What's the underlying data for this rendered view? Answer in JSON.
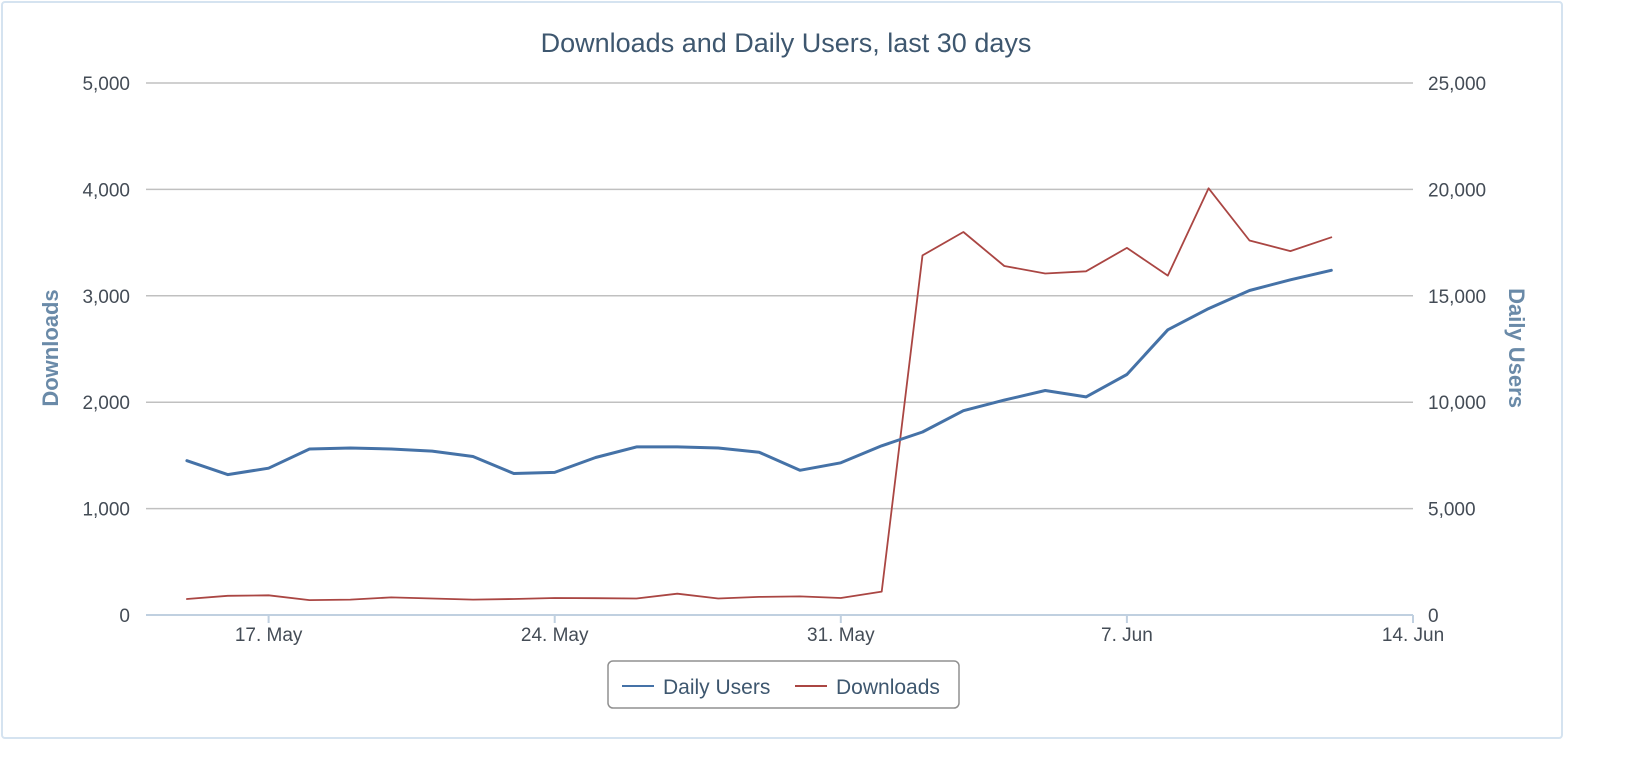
{
  "chart_data": {
    "type": "line",
    "title": "Downloads and Daily Users, last 30 days",
    "x_axis": {
      "type": "datetime",
      "ticks": [
        "17. May",
        "24. May",
        "31. May",
        "7. Jun",
        "14. Jun"
      ],
      "range": [
        "2015-05-14",
        "2015-06-14"
      ]
    },
    "y_axis_left": {
      "title": "Downloads",
      "range": [
        0,
        5000
      ],
      "ticks": [
        "0",
        "1,000",
        "2,000",
        "3,000",
        "4,000",
        "5,000"
      ]
    },
    "y_axis_right": {
      "title": "Daily Users",
      "range": [
        0,
        25000
      ],
      "ticks": [
        "0",
        "5,000",
        "10,000",
        "15,000",
        "20,000",
        "25,000"
      ]
    },
    "grid": true,
    "legend": {
      "position": "bottom-center",
      "items": [
        "Daily Users",
        "Downloads"
      ]
    },
    "x": [
      "2015-05-15",
      "2015-05-16",
      "2015-05-17",
      "2015-05-18",
      "2015-05-19",
      "2015-05-20",
      "2015-05-21",
      "2015-05-22",
      "2015-05-23",
      "2015-05-24",
      "2015-05-25",
      "2015-05-26",
      "2015-05-27",
      "2015-05-28",
      "2015-05-29",
      "2015-05-30",
      "2015-05-31",
      "2015-06-01",
      "2015-06-02",
      "2015-06-03",
      "2015-06-04",
      "2015-06-05",
      "2015-06-06",
      "2015-06-07",
      "2015-06-08",
      "2015-06-09",
      "2015-06-10",
      "2015-06-11",
      "2015-06-12"
    ],
    "series": [
      {
        "name": "Daily Users",
        "axis": "right",
        "color": "#4572a7",
        "values": [
          7250,
          6600,
          6900,
          7800,
          7850,
          7800,
          7700,
          7450,
          6650,
          6700,
          7400,
          7900,
          7900,
          7850,
          7650,
          6800,
          7150,
          7950,
          8600,
          9600,
          10100,
          10550,
          10250,
          11300,
          13400,
          14400,
          15250,
          15750,
          16200
        ]
      },
      {
        "name": "Downloads",
        "axis": "left",
        "color": "#aa4643",
        "values": [
          150,
          180,
          185,
          140,
          145,
          165,
          155,
          145,
          150,
          160,
          158,
          155,
          200,
          155,
          170,
          175,
          160,
          220,
          3380,
          3600,
          3280,
          3210,
          3230,
          3450,
          3190,
          4010,
          3520,
          3420,
          3550
        ]
      }
    ]
  }
}
